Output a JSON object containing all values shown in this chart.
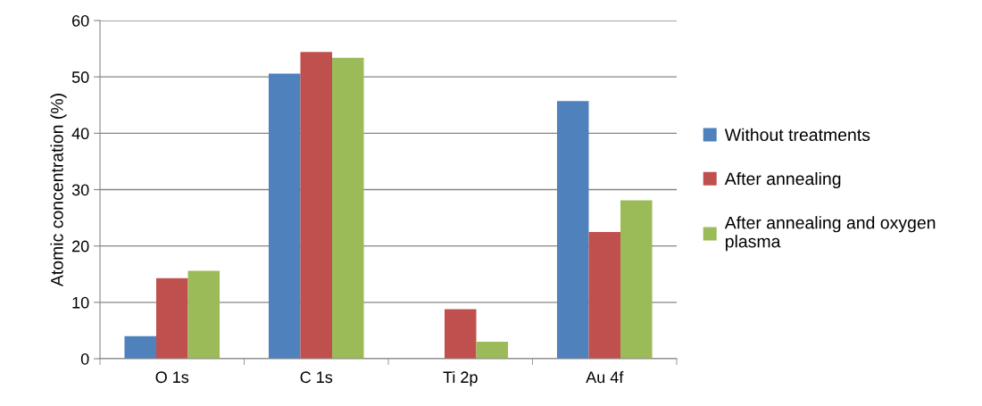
{
  "chart_data": {
    "type": "bar",
    "ylabel": "Atomic concentration (%)",
    "categories": [
      "O 1s",
      "C 1s",
      "Ti 2p",
      "Au 4f"
    ],
    "series": [
      {
        "name": "Without treatments",
        "color": "#4f81bd",
        "values": [
          4.0,
          50.6,
          0,
          45.7
        ]
      },
      {
        "name": "After annealing",
        "color": "#c0504d",
        "values": [
          14.3,
          54.4,
          8.8,
          22.5
        ]
      },
      {
        "name": "After annealing and oxygen plasma",
        "color": "#9bbb59",
        "values": [
          15.6,
          53.4,
          3.0,
          28.1
        ]
      }
    ],
    "ylim": [
      0,
      60
    ],
    "yticks": [
      0,
      10,
      20,
      30,
      40,
      50,
      60
    ],
    "grid": "y",
    "legend": "right"
  }
}
